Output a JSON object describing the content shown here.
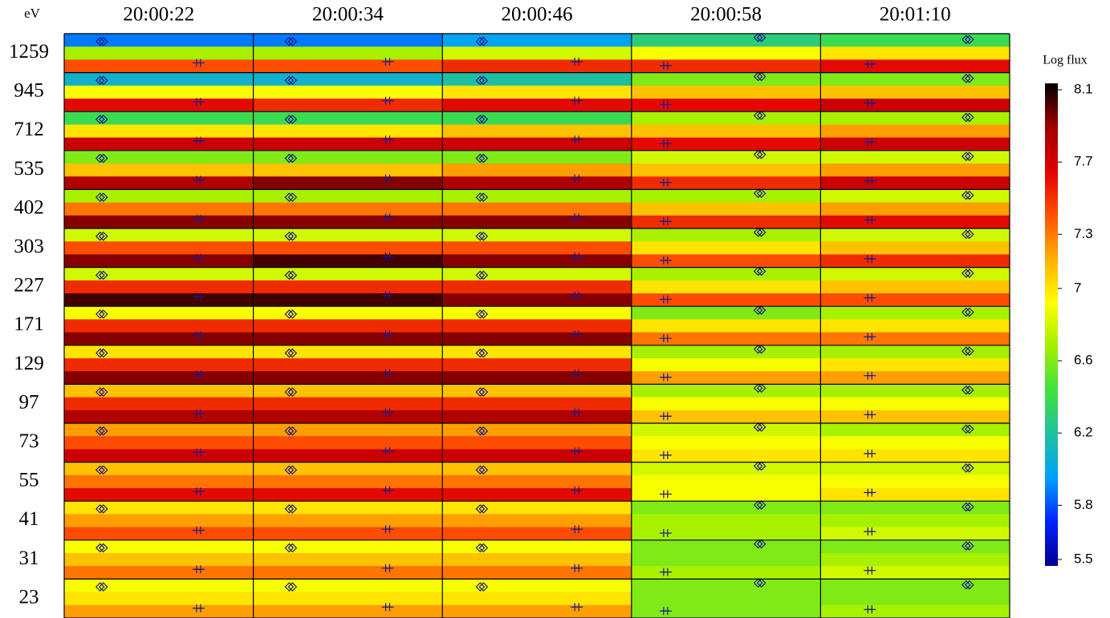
{
  "chart_data": {
    "type": "heatmap",
    "row_unit": "eV",
    "columns": [
      "20:00:22",
      "20:00:34",
      "20:00:46",
      "20:00:58",
      "20:01:10"
    ],
    "rows": [
      "1259",
      "945",
      "712",
      "535",
      "402",
      "303",
      "227",
      "171",
      "129",
      "97",
      "73",
      "55",
      "41",
      "31",
      "23"
    ],
    "values": [
      [
        [
          5.9,
          6.7,
          7.4
        ],
        [
          5.9,
          6.7,
          7.4
        ],
        [
          6.0,
          6.8,
          7.5
        ],
        [
          6.3,
          6.9,
          7.5
        ],
        [
          6.4,
          7.0,
          7.6
        ]
      ],
      [
        [
          6.1,
          6.9,
          7.6
        ],
        [
          6.1,
          6.9,
          7.5
        ],
        [
          6.2,
          7.0,
          7.6
        ],
        [
          6.6,
          7.1,
          7.6
        ],
        [
          6.6,
          7.1,
          7.7
        ]
      ],
      [
        [
          6.4,
          7.0,
          7.7
        ],
        [
          6.4,
          7.0,
          7.7
        ],
        [
          6.4,
          7.1,
          7.7
        ],
        [
          6.7,
          7.1,
          7.6
        ],
        [
          6.7,
          7.2,
          7.7
        ]
      ],
      [
        [
          6.6,
          7.1,
          7.8
        ],
        [
          6.6,
          7.1,
          7.9
        ],
        [
          6.6,
          7.2,
          7.8
        ],
        [
          6.8,
          7.1,
          7.5
        ],
        [
          6.8,
          7.2,
          7.7
        ]
      ],
      [
        [
          6.7,
          7.3,
          7.9
        ],
        [
          6.7,
          7.3,
          7.9
        ],
        [
          6.7,
          7.3,
          7.9
        ],
        [
          6.7,
          7.1,
          7.5
        ],
        [
          6.8,
          7.2,
          7.6
        ]
      ],
      [
        [
          6.8,
          7.4,
          7.9
        ],
        [
          6.8,
          7.4,
          8.0
        ],
        [
          6.8,
          7.4,
          7.9
        ],
        [
          6.7,
          7.0,
          7.4
        ],
        [
          6.8,
          7.1,
          7.5
        ]
      ],
      [
        [
          6.8,
          7.5,
          8.0
        ],
        [
          6.8,
          7.5,
          8.0
        ],
        [
          6.8,
          7.5,
          7.9
        ],
        [
          6.7,
          7.0,
          7.4
        ],
        [
          6.8,
          7.1,
          7.4
        ]
      ],
      [
        [
          6.9,
          7.5,
          7.9
        ],
        [
          6.9,
          7.5,
          7.9
        ],
        [
          6.9,
          7.5,
          7.9
        ],
        [
          6.6,
          7.0,
          7.3
        ],
        [
          6.7,
          7.0,
          7.3
        ]
      ],
      [
        [
          7.0,
          7.5,
          7.9
        ],
        [
          7.0,
          7.5,
          7.9
        ],
        [
          7.0,
          7.5,
          7.9
        ],
        [
          6.7,
          6.9,
          7.2
        ],
        [
          6.7,
          7.0,
          7.2
        ]
      ],
      [
        [
          7.1,
          7.5,
          7.8
        ],
        [
          7.1,
          7.5,
          7.8
        ],
        [
          7.1,
          7.5,
          7.8
        ],
        [
          6.7,
          6.9,
          7.1
        ],
        [
          6.7,
          6.9,
          7.1
        ]
      ],
      [
        [
          7.2,
          7.4,
          7.7
        ],
        [
          7.2,
          7.4,
          7.7
        ],
        [
          7.2,
          7.4,
          7.7
        ],
        [
          6.8,
          6.9,
          7.0
        ],
        [
          6.7,
          6.9,
          7.0
        ]
      ],
      [
        [
          7.1,
          7.3,
          7.6
        ],
        [
          7.1,
          7.3,
          7.6
        ],
        [
          7.1,
          7.3,
          7.6
        ],
        [
          6.8,
          6.9,
          6.9
        ],
        [
          6.8,
          6.9,
          7.0
        ]
      ],
      [
        [
          7.0,
          7.2,
          7.4
        ],
        [
          7.0,
          7.2,
          7.4
        ],
        [
          7.0,
          7.2,
          7.4
        ],
        [
          6.6,
          6.7,
          6.7
        ],
        [
          6.6,
          6.7,
          6.8
        ]
      ],
      [
        [
          6.9,
          7.1,
          7.3
        ],
        [
          6.9,
          7.1,
          7.3
        ],
        [
          6.9,
          7.1,
          7.3
        ],
        [
          6.6,
          6.6,
          6.7
        ],
        [
          6.6,
          6.7,
          6.8
        ]
      ],
      [
        [
          6.9,
          7.0,
          7.2
        ],
        [
          6.9,
          7.0,
          7.2
        ],
        [
          6.9,
          7.0,
          7.2
        ],
        [
          6.6,
          6.6,
          6.6
        ],
        [
          6.6,
          6.6,
          6.7
        ]
      ]
    ],
    "colorbar": {
      "label": "Log flux",
      "lim": [
        5.5,
        8.1
      ],
      "ticks": [
        8.1,
        7.7,
        7.3,
        7.0,
        6.6,
        6.2,
        5.8,
        5.5
      ],
      "colormap": [
        "#000090",
        "#0020ff",
        "#00a0ff",
        "#20c0a0",
        "#40e040",
        "#a0f000",
        "#ffff00",
        "#ffb000",
        "#ff5000",
        "#e00000",
        "#a00000",
        "#000000"
      ]
    },
    "marker_color": "#1a1a8c"
  }
}
